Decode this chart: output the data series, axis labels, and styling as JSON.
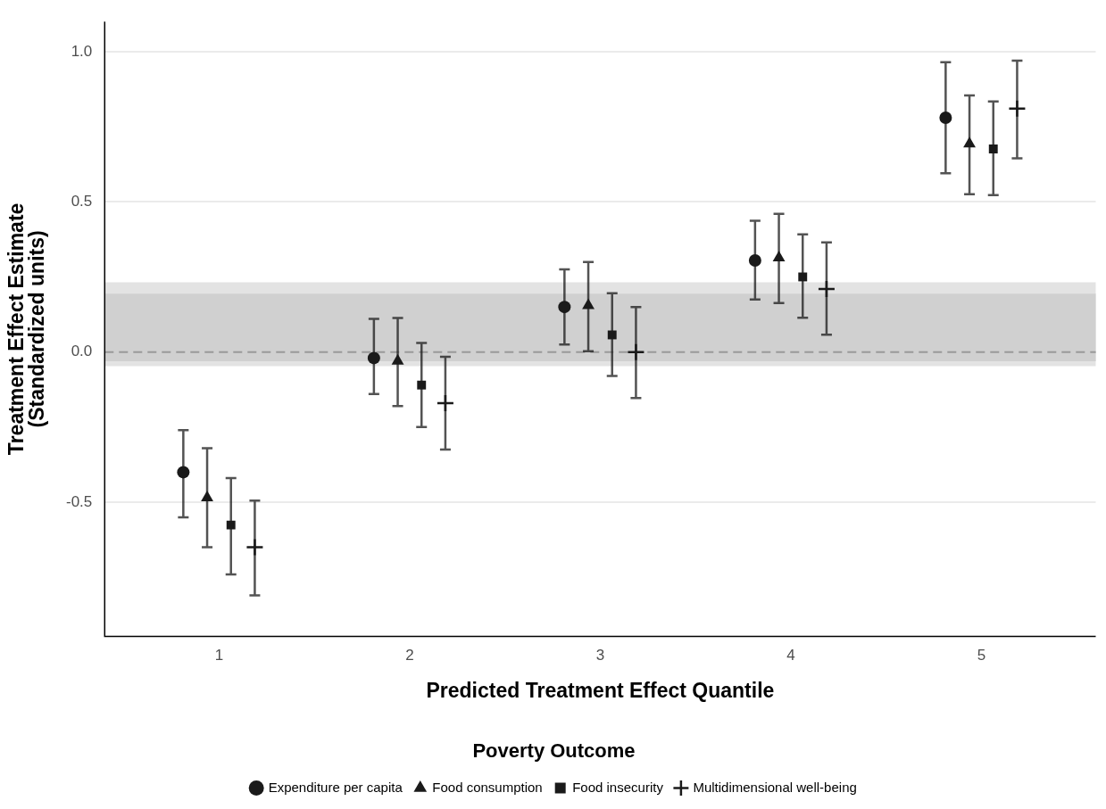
{
  "chart_data": {
    "type": "scatter",
    "xlabel": "Predicted Treatment Effect Quantile",
    "ylabel": "Treatment Effect Estimate\n(Standardized units)",
    "legend_title": "Poverty Outcome",
    "categories": [
      "1",
      "2",
      "3",
      "4",
      "5"
    ],
    "series": [
      {
        "name": "Expenditure per capita",
        "color": "#1a1a1a",
        "marker": "circle",
        "values": [
          -0.4,
          -0.02,
          0.15,
          0.305,
          0.78
        ],
        "errors": [
          [
            -0.55,
            -0.26
          ],
          [
            -0.14,
            0.11
          ],
          [
            0.025,
            0.275
          ],
          [
            0.175,
            0.437
          ],
          [
            0.595,
            0.965
          ]
        ]
      },
      {
        "name": "Food consumption",
        "color": "#1a1a1a",
        "marker": "triangle",
        "values": [
          -0.485,
          -0.03,
          0.155,
          0.314,
          0.693
        ],
        "errors": [
          [
            -0.65,
            -0.32
          ],
          [
            -0.18,
            0.113
          ],
          [
            0.003,
            0.3
          ],
          [
            0.163,
            0.46
          ],
          [
            0.525,
            0.854
          ]
        ]
      },
      {
        "name": "Food insecurity",
        "color": "#1a1a1a",
        "marker": "square",
        "values": [
          -0.576,
          -0.11,
          0.057,
          0.25,
          0.676
        ],
        "errors": [
          [
            -0.74,
            -0.42
          ],
          [
            -0.25,
            0.03
          ],
          [
            -0.08,
            0.196
          ],
          [
            0.114,
            0.392
          ],
          [
            0.522,
            0.834
          ]
        ]
      },
      {
        "name": "Multidimensional well-being",
        "color": "#1a1a1a",
        "marker": "cross",
        "values": [
          -0.65,
          -0.17,
          0.0,
          0.21,
          0.81
        ],
        "errors": [
          [
            -0.81,
            -0.495
          ],
          [
            -0.325,
            -0.016
          ],
          [
            -0.153,
            0.15
          ],
          [
            0.058,
            0.365
          ],
          [
            0.645,
            0.97
          ]
        ]
      }
    ],
    "ylim": [
      -0.947,
      1.1
    ],
    "yticks": [
      {
        "value": -0.5,
        "label": "-0.5"
      },
      {
        "value": 0,
        "label": "0.0"
      },
      {
        "value": 0.5,
        "label": "0.5"
      },
      {
        "value": 1,
        "label": "1.0"
      }
    ],
    "bands": [
      {
        "axis": "y",
        "from": -0.047,
        "to": 0.232,
        "color": "#e3e3e3"
      },
      {
        "axis": "y",
        "from": -0.031,
        "to": 0.194,
        "color": "#d0d0d0"
      }
    ],
    "ref_lines": [
      {
        "axis": "y",
        "value": 0,
        "color": "#999999",
        "line_style": "dashed"
      }
    ],
    "grid": "y",
    "legend": "bottom"
  }
}
